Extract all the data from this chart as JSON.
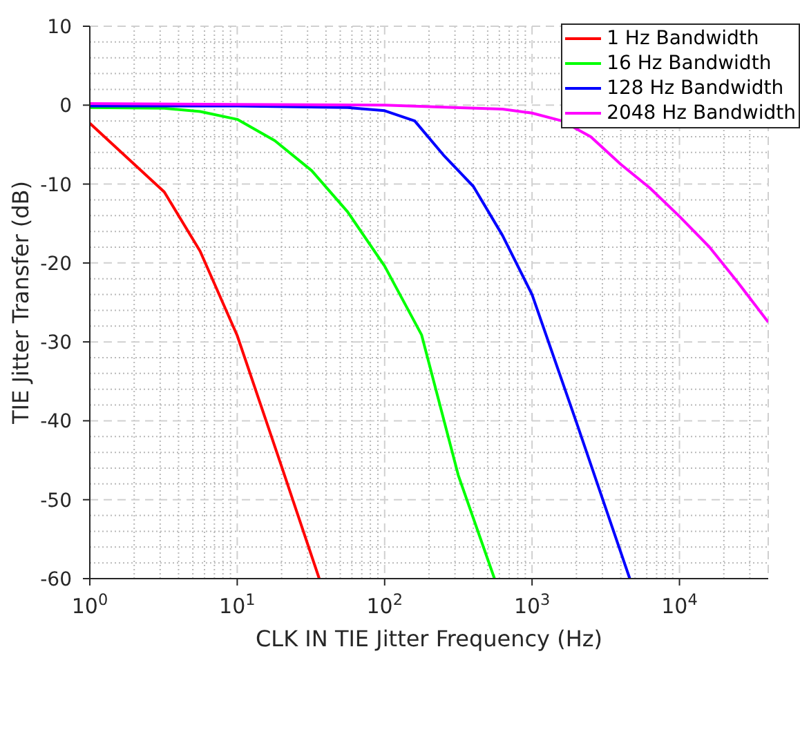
{
  "chart_data": {
    "type": "line",
    "xlabel": "CLK IN TIE Jitter Frequency (Hz)",
    "ylabel": "TIE Jitter Transfer (dB)",
    "log": "x",
    "grid": true,
    "legend": "top right",
    "marker": "none",
    "line_style": "solid",
    "xlim": [
      1,
      40000
    ],
    "xticks": [
      {
        "value": 1,
        "label": "10$^{0}$"
      },
      {
        "value": 10,
        "label": "10$^{1}$"
      },
      {
        "value": 100,
        "label": "10$^{2}$"
      },
      {
        "value": 1000,
        "label": "10$^{3}$"
      },
      {
        "value": 10000,
        "label": "10$^{4}$"
      }
    ],
    "ylim": [
      -60,
      10
    ],
    "yticks": [
      -60,
      -50,
      -40,
      -30,
      -20,
      -10,
      0,
      10
    ],
    "series": [
      {
        "name": "1 Hz Bandwidth",
        "color": "#ff0000",
        "x": [
          1,
          3.2,
          5.6,
          10,
          20,
          36
        ],
        "values": [
          -2.3,
          -11,
          -18.5,
          -29.2,
          -45.8,
          -60
        ]
      },
      {
        "name": "16 Hz Bandwidth",
        "color": "#00ff00",
        "x": [
          1,
          3.2,
          5.6,
          10,
          18,
          32,
          56,
          100,
          178,
          316,
          556
        ],
        "values": [
          -0.3,
          -0.4,
          -0.8,
          -1.8,
          -4.5,
          -8.3,
          -13.5,
          -20.4,
          -29.1,
          -46.9,
          -60
        ]
      },
      {
        "name": "128 Hz Bandwidth",
        "color": "#0000ff",
        "x": [
          1,
          10,
          56,
          100,
          160,
          250,
          400,
          630,
          1000,
          2000,
          4600
        ],
        "values": [
          -0.1,
          -0.1,
          -0.3,
          -0.7,
          -2,
          -6.3,
          -10.3,
          -16.5,
          -24,
          -40.2,
          -60
        ]
      },
      {
        "name": "2048 Hz Bandwidth",
        "color": "#ff00ff",
        "x": [
          1,
          10,
          100,
          300,
          630,
          1000,
          1600,
          2500,
          4000,
          6300,
          10000,
          16000,
          25000,
          40000
        ],
        "values": [
          0.2,
          0.1,
          0,
          -0.3,
          -0.5,
          -1,
          -2,
          -4,
          -7.5,
          -10.5,
          -14.1,
          -18,
          -22.5,
          -27.5
        ]
      }
    ]
  }
}
